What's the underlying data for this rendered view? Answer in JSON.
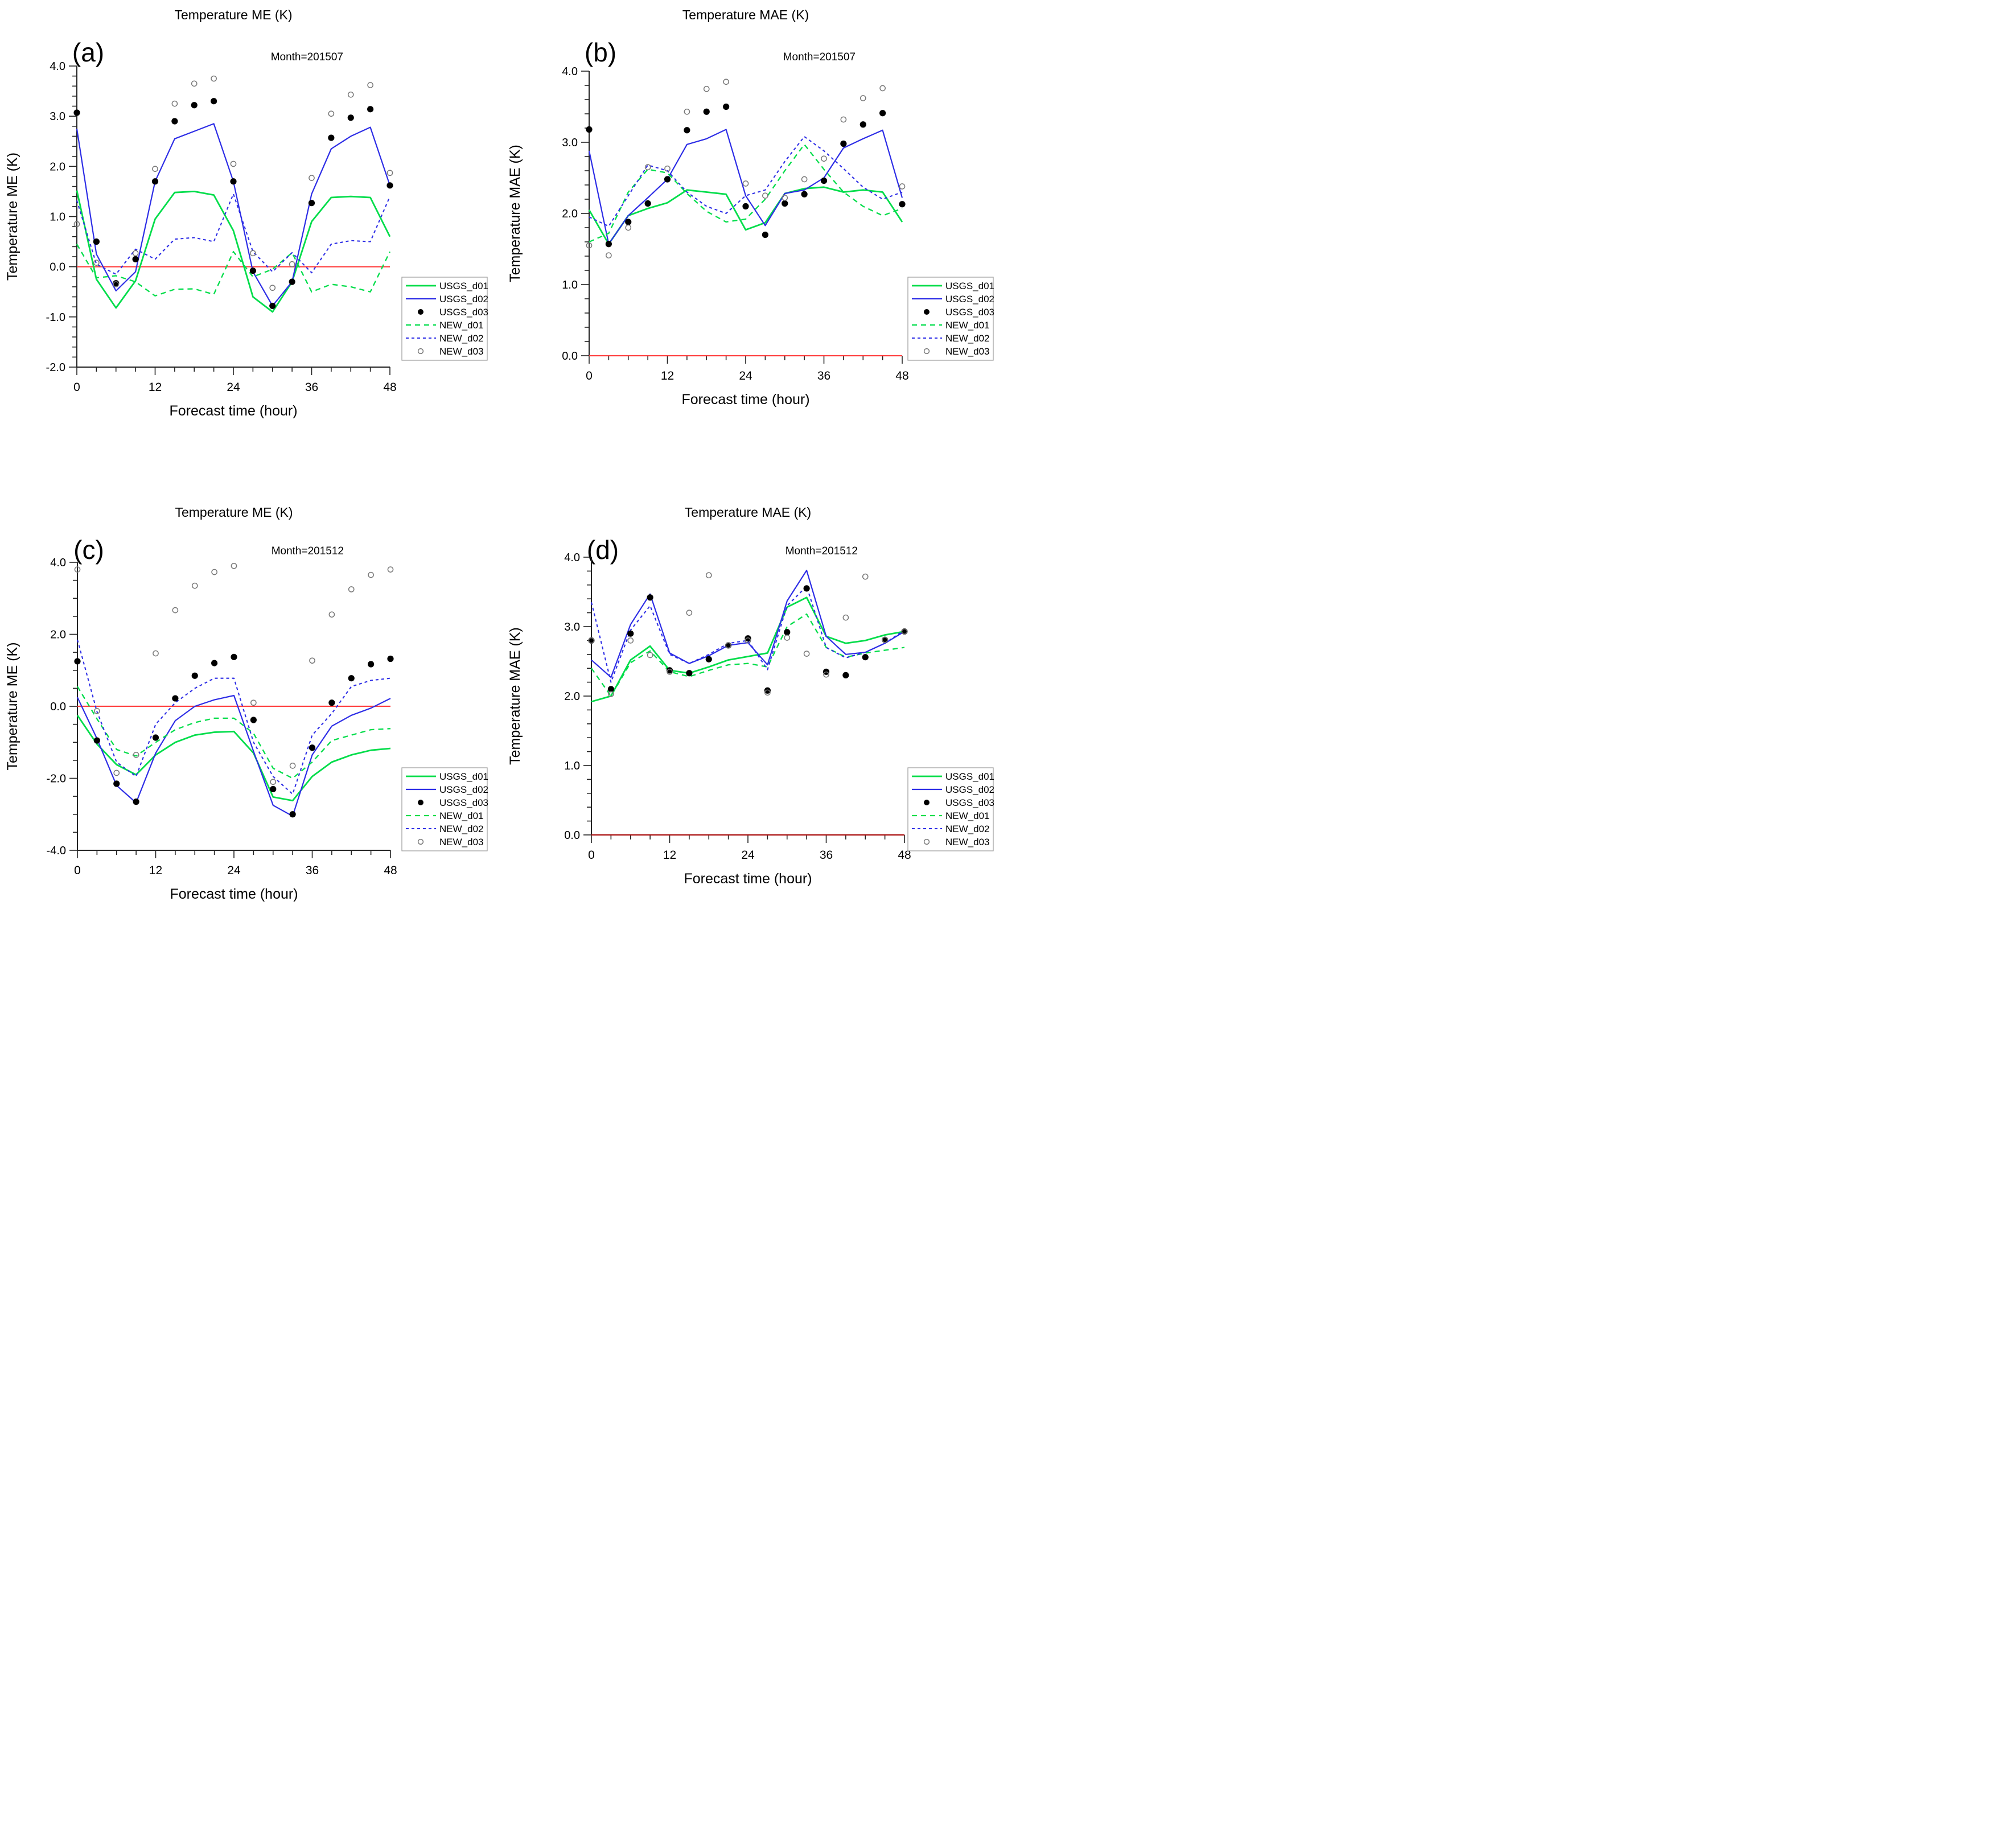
{
  "figure_name": "temperature-verification-4panel",
  "styles": {
    "green": "#00dd4a",
    "blue": "#2d2de6",
    "black_dot": "#000000",
    "open_circle_stroke": "#777777",
    "zero_line_red": "#ff4040",
    "zero_line_dark_red": "#aa1111",
    "axis_color": "#222222",
    "legend_border": "#999999",
    "background": "#ffffff"
  },
  "chart_data": [
    {
      "type": "line",
      "letter": "(a)",
      "title": "Temperature ME (K)",
      "month_label": "Month=201507",
      "xlabel": "Forecast time (hour)",
      "ylabel": "Temperature ME (K)",
      "xlim": [
        0,
        48
      ],
      "ylim": [
        -2,
        4
      ],
      "x_ticks": [
        0,
        12,
        24,
        36,
        48
      ],
      "x_tick_labels": [
        "0",
        "12",
        "24",
        "36",
        "48"
      ],
      "x_minor_step": 3,
      "y_major_step": 1,
      "y_minor_step": 0.2,
      "y_tick_labels": [
        "-2.0",
        "-1.0",
        "0.0",
        "1.0",
        "2.0",
        "3.0",
        "4.0"
      ],
      "zero_line": 0,
      "zero_line_style": "red",
      "x": [
        0,
        3,
        6,
        9,
        12,
        15,
        18,
        21,
        24,
        27,
        30,
        33,
        36,
        39,
        42,
        45,
        48
      ],
      "series": [
        {
          "name": "USGS_d01",
          "style": "green-solid",
          "values": [
            1.52,
            -0.25,
            -0.82,
            -0.28,
            0.95,
            1.48,
            1.5,
            1.43,
            0.72,
            -0.6,
            -0.9,
            -0.3,
            0.9,
            1.38,
            1.4,
            1.38,
            0.6
          ]
        },
        {
          "name": "USGS_d02",
          "style": "blue-solid",
          "values": [
            2.75,
            0.25,
            -0.48,
            -0.1,
            1.7,
            2.55,
            2.7,
            2.85,
            1.7,
            -0.1,
            -0.78,
            -0.3,
            1.45,
            2.35,
            2.6,
            2.78,
            1.62
          ]
        },
        {
          "name": "USGS_d03",
          "style": "black-filled-dot",
          "values": [
            3.07,
            0.5,
            -0.33,
            0.15,
            1.7,
            2.9,
            3.22,
            3.3,
            1.7,
            -0.08,
            -0.78,
            -0.3,
            1.27,
            2.57,
            2.97,
            3.14,
            1.62
          ]
        },
        {
          "name": "NEW_d01",
          "style": "green-dashed",
          "values": [
            0.45,
            -0.22,
            -0.18,
            -0.3,
            -0.58,
            -0.45,
            -0.44,
            -0.55,
            0.3,
            -0.2,
            -0.05,
            0.28,
            -0.5,
            -0.35,
            -0.4,
            -0.5,
            0.3
          ]
        },
        {
          "name": "NEW_d02",
          "style": "blue-dashed",
          "values": [
            1.32,
            0.05,
            -0.15,
            0.35,
            0.15,
            0.55,
            0.58,
            0.5,
            1.45,
            0.3,
            -0.1,
            0.28,
            -0.12,
            0.45,
            0.52,
            0.5,
            1.4
          ]
        },
        {
          "name": "NEW_d03",
          "style": "gray-open-circle",
          "values": [
            0.85,
            0.08,
            -0.35,
            0.27,
            1.95,
            3.25,
            3.65,
            3.75,
            2.05,
            0.27,
            -0.42,
            0.05,
            1.77,
            3.05,
            3.43,
            3.62,
            1.87
          ]
        }
      ]
    },
    {
      "type": "line",
      "letter": "(b)",
      "title": "Temperature MAE (K)",
      "month_label": "Month=201507",
      "xlabel": "Forecast time (hour)",
      "ylabel": "Temperature MAE (K)",
      "xlim": [
        0,
        48
      ],
      "ylim": [
        0,
        4
      ],
      "x_ticks": [
        0,
        12,
        24,
        36,
        48
      ],
      "x_tick_labels": [
        "0",
        "12",
        "24",
        "36",
        "48"
      ],
      "x_minor_step": 3,
      "y_major_step": 1,
      "y_minor_step": 0.2,
      "y_tick_labels": [
        "0.0",
        "1.0",
        "2.0",
        "3.0",
        "4.0"
      ],
      "zero_line": 0,
      "zero_line_style": "red",
      "x": [
        0,
        3,
        6,
        9,
        12,
        15,
        18,
        21,
        24,
        27,
        30,
        33,
        36,
        39,
        42,
        45,
        48
      ],
      "series": [
        {
          "name": "USGS_d01",
          "style": "green-solid",
          "values": [
            2.05,
            1.57,
            1.97,
            2.07,
            2.15,
            2.33,
            2.3,
            2.27,
            1.77,
            1.87,
            2.28,
            2.35,
            2.37,
            2.3,
            2.33,
            2.3,
            1.88
          ]
        },
        {
          "name": "USGS_d02",
          "style": "blue-solid",
          "values": [
            2.88,
            1.57,
            1.97,
            2.22,
            2.48,
            2.97,
            3.05,
            3.18,
            2.25,
            1.83,
            2.28,
            2.33,
            2.5,
            2.92,
            3.05,
            3.17,
            2.22
          ]
        },
        {
          "name": "USGS_d03",
          "style": "black-filled-dot",
          "values": [
            3.18,
            1.57,
            1.88,
            2.14,
            2.48,
            3.17,
            3.43,
            3.5,
            2.1,
            1.7,
            2.14,
            2.27,
            2.46,
            2.98,
            3.25,
            3.41,
            2.13
          ]
        },
        {
          "name": "NEW_d01",
          "style": "green-dashed",
          "values": [
            1.6,
            1.72,
            2.3,
            2.62,
            2.57,
            2.28,
            2.03,
            1.88,
            1.92,
            2.2,
            2.6,
            2.97,
            2.62,
            2.3,
            2.1,
            1.97,
            2.07
          ]
        },
        {
          "name": "NEW_d02",
          "style": "blue-dashed",
          "values": [
            1.95,
            1.82,
            2.25,
            2.68,
            2.6,
            2.3,
            2.1,
            2.0,
            2.25,
            2.33,
            2.73,
            3.08,
            2.88,
            2.63,
            2.37,
            2.2,
            2.3
          ]
        },
        {
          "name": "NEW_d03",
          "style": "gray-open-circle",
          "values": [
            1.55,
            1.41,
            1.8,
            2.65,
            2.63,
            3.43,
            3.75,
            3.85,
            2.42,
            2.25,
            2.22,
            2.48,
            2.77,
            3.32,
            3.62,
            3.76,
            2.38
          ]
        }
      ]
    },
    {
      "type": "line",
      "letter": "(c)",
      "title": "Temperature ME (K)",
      "month_label": "Month=201512",
      "xlabel": "Forecast time (hour)",
      "ylabel": "Temperature ME (K)",
      "xlim": [
        0,
        48
      ],
      "ylim": [
        -4,
        4
      ],
      "x_ticks": [
        0,
        12,
        24,
        36,
        48
      ],
      "x_tick_labels": [
        "0",
        "12",
        "24",
        "36",
        "48"
      ],
      "x_minor_step": 3,
      "y_major_step": 2,
      "y_minor_step": 0.5,
      "y_tick_labels": [
        "-4.0",
        "-2.0",
        "0.0",
        "2.0",
        "4.0"
      ],
      "zero_line": 0,
      "zero_line_style": "red",
      "x": [
        0,
        3,
        6,
        9,
        12,
        15,
        18,
        21,
        24,
        27,
        30,
        33,
        36,
        39,
        42,
        45,
        48
      ],
      "series": [
        {
          "name": "USGS_d01",
          "style": "green-solid",
          "values": [
            -0.25,
            -1.05,
            -1.62,
            -1.9,
            -1.35,
            -1.0,
            -0.8,
            -0.72,
            -0.7,
            -1.3,
            -2.52,
            -2.62,
            -1.95,
            -1.55,
            -1.35,
            -1.22,
            -1.17
          ]
        },
        {
          "name": "USGS_d02",
          "style": "blue-solid",
          "values": [
            0.25,
            -0.9,
            -2.2,
            -2.68,
            -1.3,
            -0.4,
            0.0,
            0.18,
            0.3,
            -1.25,
            -2.75,
            -3.05,
            -1.35,
            -0.55,
            -0.25,
            -0.05,
            0.22
          ]
        },
        {
          "name": "USGS_d03",
          "style": "black-filled-dot",
          "values": [
            1.25,
            -0.95,
            -2.15,
            -2.65,
            -0.87,
            0.22,
            0.85,
            1.2,
            1.37,
            -0.38,
            -2.3,
            -3.0,
            -1.15,
            0.1,
            0.78,
            1.17,
            1.32
          ]
        },
        {
          "name": "NEW_d01",
          "style": "green-dashed",
          "values": [
            0.55,
            -0.35,
            -1.2,
            -1.38,
            -1.0,
            -0.65,
            -0.45,
            -0.33,
            -0.33,
            -0.75,
            -1.72,
            -2.0,
            -1.55,
            -0.95,
            -0.8,
            -0.65,
            -0.62
          ]
        },
        {
          "name": "NEW_d02",
          "style": "blue-dashed",
          "values": [
            1.85,
            -0.15,
            -1.55,
            -1.95,
            -0.5,
            0.1,
            0.5,
            0.78,
            0.78,
            -1.0,
            -1.95,
            -2.44,
            -0.8,
            -0.2,
            0.55,
            0.72,
            0.78
          ]
        },
        {
          "name": "NEW_d03",
          "style": "gray-open-circle",
          "values": [
            3.8,
            -0.13,
            -1.85,
            -1.35,
            1.47,
            2.67,
            3.35,
            3.73,
            3.9,
            0.1,
            -2.1,
            -1.65,
            1.27,
            2.55,
            3.25,
            3.65,
            3.8
          ]
        }
      ]
    },
    {
      "type": "line",
      "letter": "(d)",
      "title": "Temperature MAE (K)",
      "month_label": "Month=201512",
      "xlabel": "Forecast time (hour)",
      "ylabel": "Temperature MAE (K)",
      "xlim": [
        0,
        48
      ],
      "ylim": [
        0,
        4
      ],
      "x_ticks": [
        0,
        12,
        24,
        36,
        48
      ],
      "x_tick_labels": [
        "0",
        "12",
        "24",
        "36",
        "48"
      ],
      "x_minor_step": 3,
      "y_major_step": 1,
      "y_minor_step": 0.2,
      "y_tick_labels": [
        "0.0",
        "1.0",
        "2.0",
        "3.0",
        "4.0"
      ],
      "zero_line": 0,
      "zero_line_style": "dark-red",
      "x": [
        0,
        3,
        6,
        9,
        12,
        15,
        18,
        21,
        24,
        27,
        30,
        33,
        36,
        39,
        42,
        45,
        48
      ],
      "series": [
        {
          "name": "USGS_d01",
          "style": "green-solid",
          "values": [
            1.92,
            2.0,
            2.52,
            2.72,
            2.37,
            2.33,
            2.42,
            2.52,
            2.57,
            2.62,
            3.28,
            3.42,
            2.86,
            2.76,
            2.8,
            2.88,
            2.93
          ]
        },
        {
          "name": "USGS_d02",
          "style": "blue-solid",
          "values": [
            2.52,
            2.27,
            3.03,
            3.47,
            2.62,
            2.47,
            2.58,
            2.73,
            2.77,
            2.45,
            3.37,
            3.81,
            2.86,
            2.6,
            2.63,
            2.76,
            2.93
          ]
        },
        {
          "name": "USGS_d03",
          "style": "black-filled-dot",
          "values": [
            2.8,
            2.1,
            2.9,
            3.42,
            2.37,
            2.33,
            2.53,
            2.73,
            2.83,
            2.08,
            2.92,
            3.55,
            2.35,
            2.3,
            2.56,
            2.81,
            2.93
          ]
        },
        {
          "name": "NEW_d01",
          "style": "green-dashed",
          "values": [
            2.4,
            2.0,
            2.48,
            2.65,
            2.35,
            2.28,
            2.37,
            2.45,
            2.47,
            2.42,
            3.0,
            3.18,
            2.7,
            2.56,
            2.62,
            2.66,
            2.7
          ]
        },
        {
          "name": "NEW_d02",
          "style": "blue-dashed",
          "values": [
            3.35,
            2.2,
            2.95,
            3.3,
            2.6,
            2.47,
            2.6,
            2.76,
            2.8,
            2.38,
            3.3,
            3.58,
            2.7,
            2.55,
            2.63,
            2.76,
            2.95
          ]
        },
        {
          "name": "NEW_d03",
          "style": "gray-open-circle",
          "values": [
            2.8,
            2.03,
            2.8,
            2.59,
            2.35,
            3.2,
            3.74,
            2.73,
            2.8,
            2.05,
            2.84,
            2.61,
            2.31,
            3.13,
            3.72,
            2.81,
            2.93
          ]
        }
      ]
    }
  ],
  "legend": {
    "entries": [
      "USGS_d01",
      "USGS_d02",
      "USGS_d03",
      "NEW_d01",
      "NEW_d02",
      "NEW_d03"
    ]
  }
}
